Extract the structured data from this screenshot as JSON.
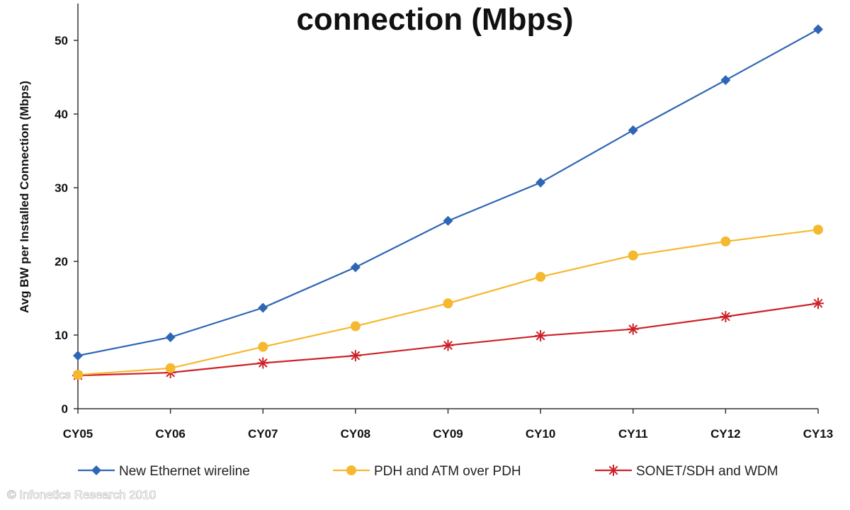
{
  "chart_data": {
    "type": "line",
    "title": "connection (Mbps)",
    "ylabel": "Avg BW per Installed Connection (Mbps)",
    "xlabel": "",
    "categories": [
      "CY05",
      "CY06",
      "CY07",
      "CY08",
      "CY09",
      "CY10",
      "CY11",
      "CY12",
      "CY13"
    ],
    "ylim": [
      0,
      55
    ],
    "yticks": [
      0,
      10,
      20,
      30,
      40,
      50
    ],
    "grid": false,
    "legend_position": "bottom",
    "series": [
      {
        "name": "New Ethernet wireline",
        "color": "#2e66b5",
        "marker": "diamond",
        "values": [
          7.2,
          9.7,
          13.7,
          19.2,
          25.5,
          30.7,
          37.8,
          44.6,
          51.5
        ]
      },
      {
        "name": "PDH and ATM over PDH",
        "color": "#f5b82e",
        "marker": "circle",
        "values": [
          4.6,
          5.5,
          8.4,
          11.2,
          14.3,
          17.9,
          20.8,
          22.7,
          24.3
        ]
      },
      {
        "name": "SONET/SDH and WDM",
        "color": "#cc2127",
        "marker": "asterisk",
        "values": [
          4.5,
          4.9,
          6.2,
          7.2,
          8.6,
          9.9,
          10.8,
          12.5,
          14.3
        ]
      }
    ]
  },
  "footer": {
    "copyright": "© Infonetics Research 2010"
  }
}
